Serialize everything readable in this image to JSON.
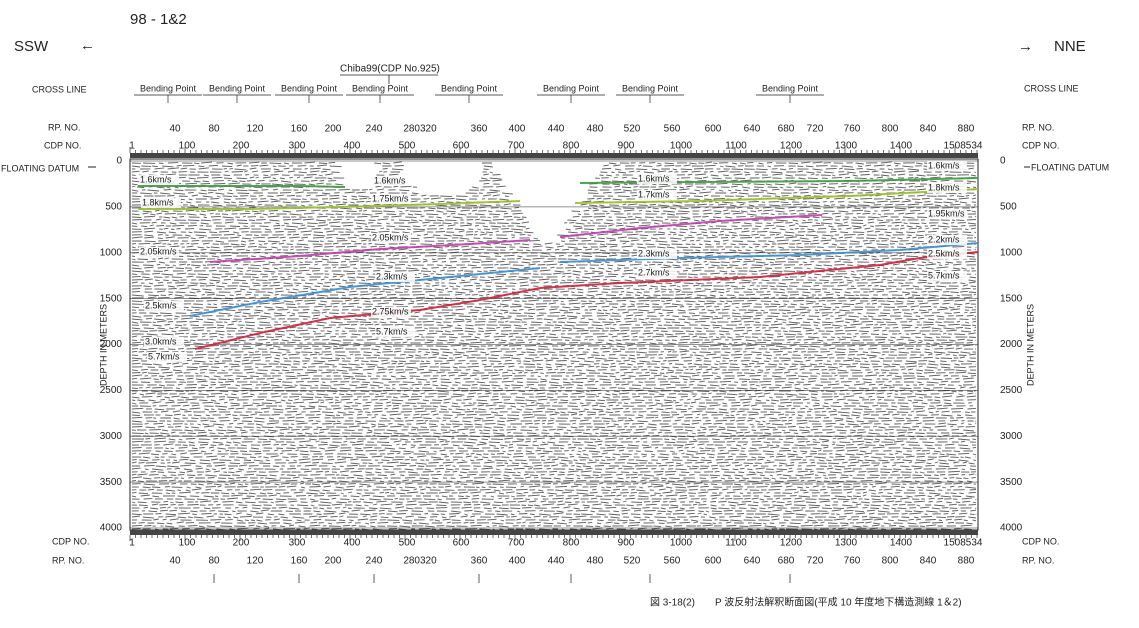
{
  "header": {
    "line_id": "98 - 1&2",
    "left_dir": "SSW",
    "left_arrow": "←",
    "right_dir": "NNE",
    "right_arrow": "→"
  },
  "row_labels": {
    "cross_line": "CROSS LINE",
    "rp_no": "RP. NO.",
    "cdp_no": "CDP NO.",
    "floating_datum": "FLOATING DATUM",
    "depth_axis": "DEPTH IN METERS"
  },
  "annotations": {
    "chiba": "Chiba99(CDP No.925)",
    "bending_points": [
      "Bending Point",
      "Bending Point",
      "Bending Point",
      "Bending Point",
      "Bending Point",
      "Bending Point",
      "Bending Point",
      "Bending Point"
    ]
  },
  "rp_ticks": [
    "40",
    "80",
    "120",
    "160",
    "200",
    "240",
    "280320",
    "360",
    "400",
    "440",
    "480",
    "520",
    "560",
    "600",
    "640",
    "680",
    "720",
    "760",
    "800",
    "840",
    "880"
  ],
  "cdp_ticks": [
    "1",
    "100",
    "200",
    "300",
    "400",
    "500",
    "600",
    "700",
    "800",
    "900",
    "1000",
    "1100",
    "1200",
    "1300",
    "1400",
    "1508534"
  ],
  "depth_ticks": [
    "0",
    "500",
    "1000",
    "1500",
    "2000",
    "2500",
    "3000",
    "3500",
    "4000"
  ],
  "velocity_labels": [
    "1.6km/s",
    "1.8km/s",
    "2.05km/s",
    "2.5km/s",
    "3.0km/s",
    "5.7km/s",
    "1.6km/s",
    "1.75km/s",
    "2.05km/s",
    "2.3km/s",
    "2.75km/s",
    "5.7km/s",
    "1.6km/s",
    "1.7km/s",
    "2.3km/s",
    "2.7km/s",
    "1.6km/s",
    "1.8km/s",
    "1.95km/s",
    "2.2km/s",
    "2.5km/s",
    "5.7km/s"
  ],
  "caption": "図 3-18(2)　　P 波反射法解釈断面図(平成 10 年度地下構造測線 1＆2)"
}
